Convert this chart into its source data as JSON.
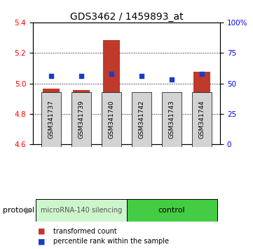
{
  "title": "GDS3462 / 1459893_at",
  "samples": [
    "GSM341737",
    "GSM341739",
    "GSM341740",
    "GSM341742",
    "GSM341743",
    "GSM341744"
  ],
  "bar_bottoms": [
    4.605,
    4.605,
    4.605,
    4.605,
    4.605,
    4.605
  ],
  "bar_tops": [
    4.965,
    4.955,
    5.285,
    4.865,
    4.635,
    5.075
  ],
  "percentile_ranks": [
    56,
    56,
    58,
    56,
    53,
    58
  ],
  "ylim": [
    4.6,
    5.4
  ],
  "y2lim": [
    0,
    100
  ],
  "yticks": [
    4.6,
    4.8,
    5.0,
    5.2,
    5.4
  ],
  "y2ticks": [
    0,
    25,
    50,
    75,
    100
  ],
  "y2ticklabels": [
    "0",
    "25",
    "50",
    "75",
    "100%"
  ],
  "bar_color": "#c0392b",
  "dot_color": "#1a3cc7",
  "group0_label": "microRNA-140 silencing",
  "group0_color": "#ccf5cc",
  "group1_label": "control",
  "group1_color": "#44cc44",
  "protocol_label": "protocol",
  "legend_bar_label": "transformed count",
  "legend_dot_label": "percentile rank within the sample",
  "bar_width": 0.55,
  "title_fontsize": 10,
  "tick_fontsize": 7.5,
  "sample_fontsize": 6.5,
  "proto_fontsize": 7,
  "legend_fontsize": 7
}
